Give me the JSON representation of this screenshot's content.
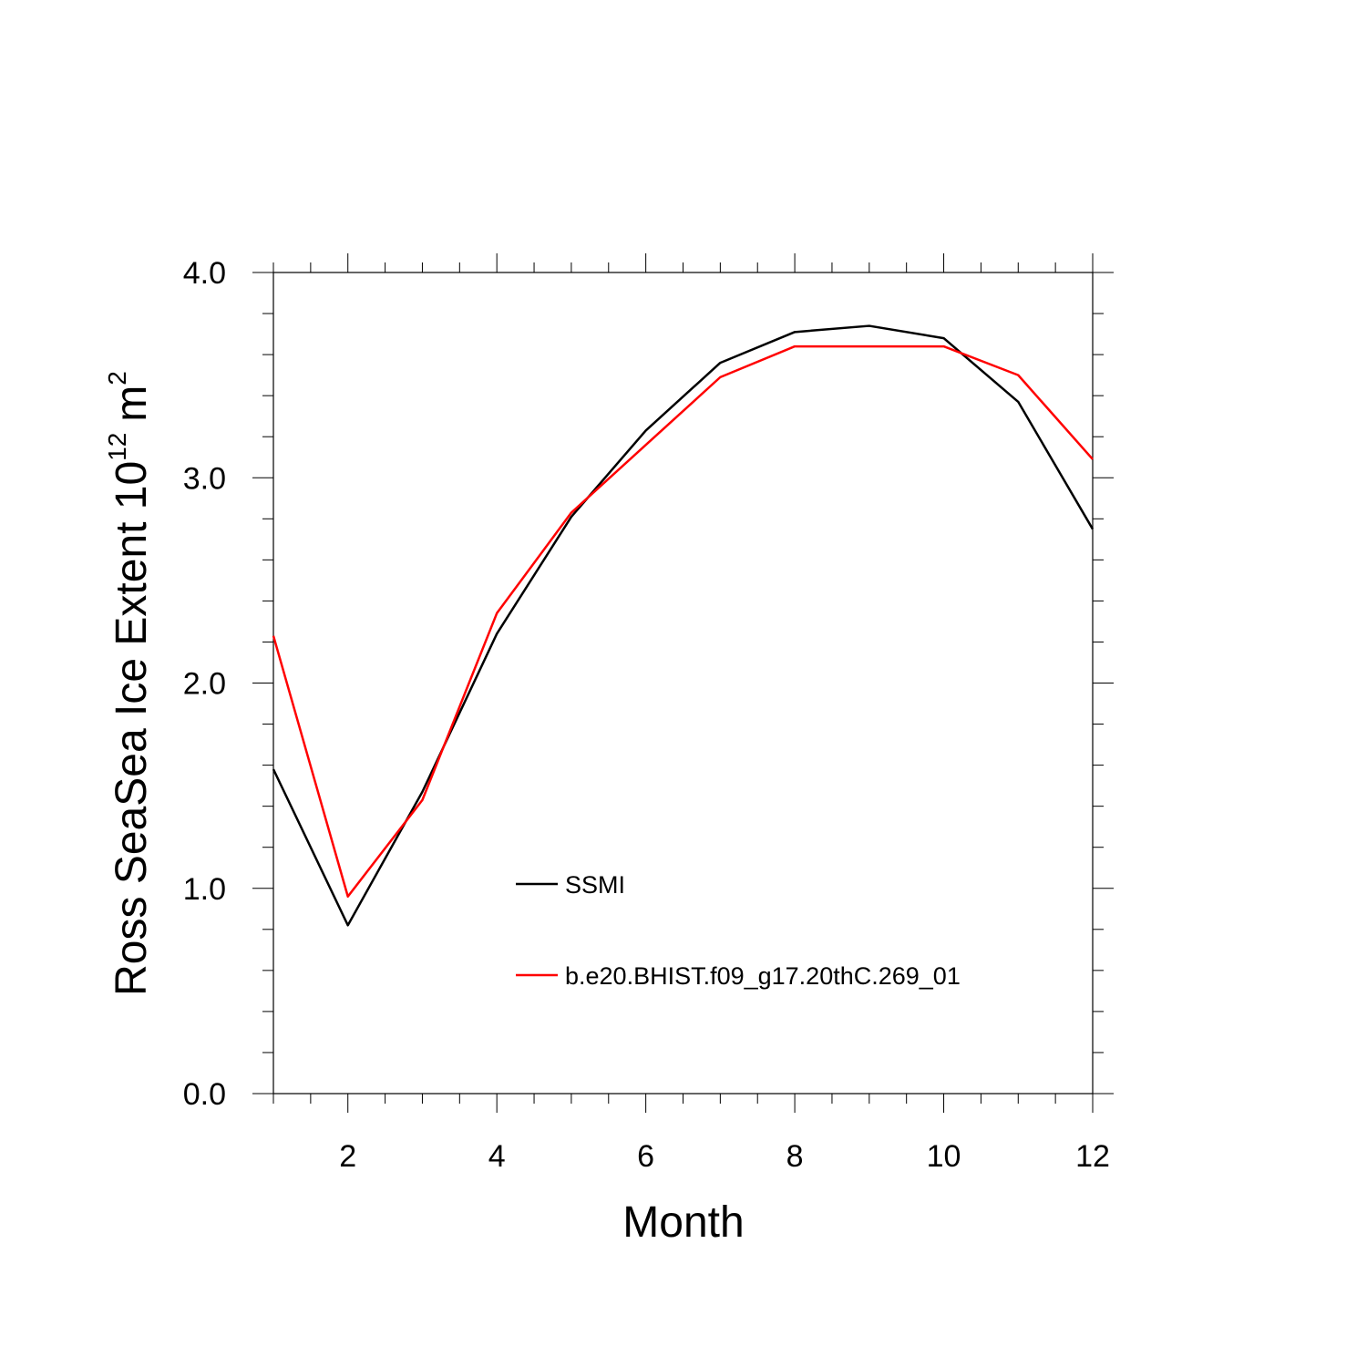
{
  "chart_data": {
    "type": "line",
    "x_label": "Month",
    "y_label": {
      "main": "Ross SeaSea Ice Extent 10",
      "exp": "12",
      "unit": "m",
      "unit_exp": "2"
    },
    "x": [
      1,
      2,
      3,
      4,
      5,
      6,
      7,
      8,
      9,
      10,
      11,
      12
    ],
    "series": [
      {
        "name": "SSMI",
        "color": "#000000",
        "values": [
          1.58,
          0.82,
          1.47,
          2.24,
          2.81,
          3.23,
          3.56,
          3.71,
          3.74,
          3.68,
          3.37,
          2.75
        ]
      },
      {
        "name": "b.e20.BHIST.f09_g17.20thC.269_01",
        "color": "#ff0000",
        "values": [
          2.23,
          0.96,
          1.43,
          2.34,
          2.83,
          3.16,
          3.49,
          3.64,
          3.64,
          3.64,
          3.5,
          3.09
        ]
      }
    ],
    "xlim": [
      1,
      12
    ],
    "xticks": [
      2,
      4,
      6,
      8,
      10,
      12
    ],
    "x_minor_ticks": [
      1,
      1.5,
      2.5,
      3,
      3.5,
      4.5,
      5,
      5.5,
      6.5,
      7,
      7.5,
      8.5,
      9,
      9.5,
      10.5,
      11,
      11.5
    ],
    "ylim": [
      0,
      4
    ],
    "yticks": [
      {
        "value": 0,
        "label": "0.0"
      },
      {
        "value": 1,
        "label": "1.0"
      },
      {
        "value": 2,
        "label": "2.0"
      },
      {
        "value": 3,
        "label": "3.0"
      },
      {
        "value": 4,
        "label": "4.0"
      }
    ],
    "y_minor_ticks": [
      0.2,
      0.4,
      0.6,
      0.8,
      1.2,
      1.4,
      1.6,
      1.8,
      2.2,
      2.4,
      2.6,
      2.8,
      3.2,
      3.4,
      3.6,
      3.8
    ],
    "grid": false
  }
}
